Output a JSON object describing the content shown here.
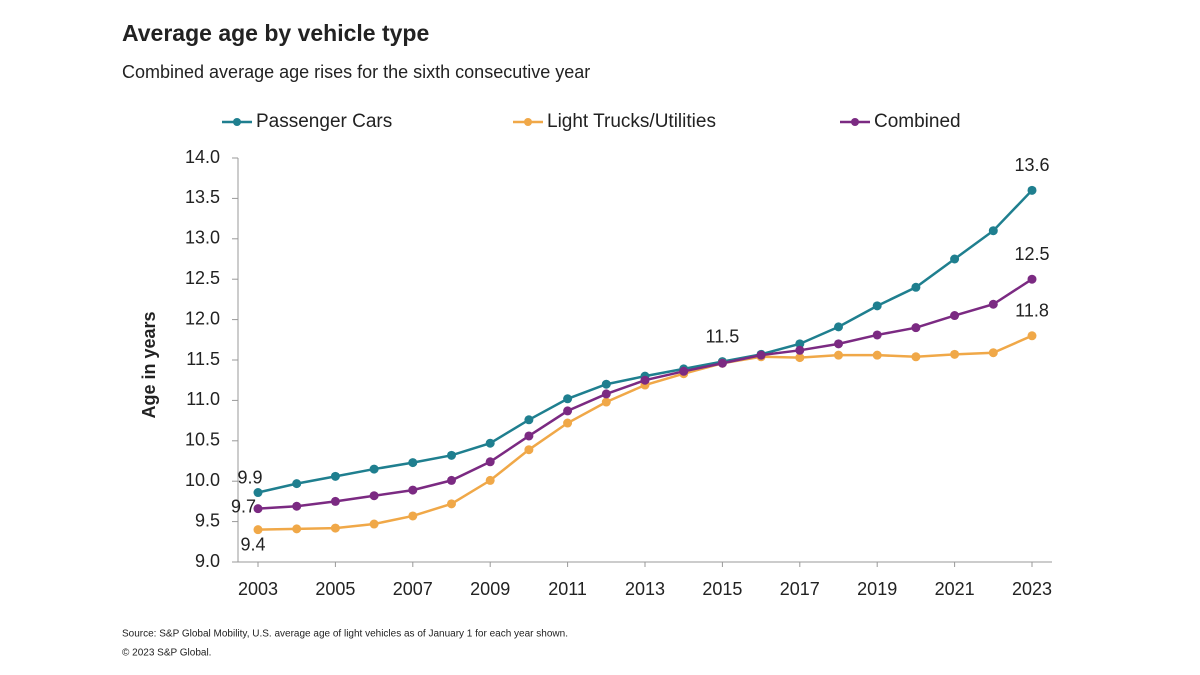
{
  "chart_data": {
    "type": "line",
    "title": "Average age by vehicle type",
    "subtitle": "Combined average age rises for the sixth consecutive year",
    "y_label": "Age in years",
    "x": [
      2003,
      2004,
      2005,
      2006,
      2007,
      2008,
      2009,
      2010,
      2011,
      2012,
      2013,
      2014,
      2015,
      2016,
      2017,
      2018,
      2019,
      2020,
      2021,
      2022,
      2023
    ],
    "xlim": [
      2003,
      2023
    ],
    "xticks": [
      2003,
      2005,
      2007,
      2009,
      2011,
      2013,
      2015,
      2017,
      2019,
      2021,
      2023
    ],
    "ylim": [
      9,
      14
    ],
    "yticks": [
      {
        "value": 9,
        "label": "9.0"
      },
      {
        "value": 9.5,
        "label": "9.5"
      },
      {
        "value": 10,
        "label": "10.0"
      },
      {
        "value": 10.5,
        "label": "10.5"
      },
      {
        "value": 11,
        "label": "11.0"
      },
      {
        "value": 11.5,
        "label": "11.5"
      },
      {
        "value": 12,
        "label": "12.0"
      },
      {
        "value": 12.5,
        "label": "12.5"
      },
      {
        "value": 13,
        "label": "13.0"
      },
      {
        "value": 13.5,
        "label": "13.5"
      },
      {
        "value": 14,
        "label": "14.0"
      }
    ],
    "grid": false,
    "legend": "top",
    "series": [
      {
        "name": "Passenger Cars",
        "color": "#1f7f8f",
        "values": [
          9.86,
          9.97,
          10.06,
          10.15,
          10.23,
          10.32,
          10.47,
          10.76,
          11.02,
          11.2,
          11.3,
          11.39,
          11.48,
          11.57,
          11.7,
          11.91,
          12.17,
          12.4,
          12.75,
          13.1,
          13.6
        ],
        "value_labels": [
          "9.9",
          null,
          null,
          null,
          null,
          null,
          null,
          null,
          null,
          null,
          null,
          null,
          "11.5",
          null,
          null,
          null,
          null,
          null,
          null,
          null,
          "13.6"
        ]
      },
      {
        "name": "Light Trucks/Utilities",
        "color": "#f0a848",
        "values": [
          9.4,
          9.41,
          9.42,
          9.47,
          9.57,
          9.72,
          10.01,
          10.39,
          10.72,
          10.98,
          11.19,
          11.33,
          11.46,
          11.54,
          11.53,
          11.56,
          11.56,
          11.54,
          11.57,
          11.59,
          11.8
        ],
        "value_labels": [
          "9.4",
          null,
          null,
          null,
          null,
          null,
          null,
          null,
          null,
          null,
          null,
          null,
          null,
          null,
          null,
          null,
          null,
          null,
          null,
          null,
          "11.8"
        ]
      },
      {
        "name": "Combined",
        "color": "#7b2a82",
        "values": [
          9.66,
          9.69,
          9.75,
          9.82,
          9.89,
          10.01,
          10.24,
          10.56,
          10.87,
          11.08,
          11.25,
          11.36,
          11.46,
          11.56,
          11.62,
          11.7,
          11.81,
          11.9,
          12.05,
          12.19,
          12.5
        ],
        "value_labels": [
          "9.7",
          null,
          null,
          null,
          null,
          null,
          null,
          null,
          null,
          null,
          null,
          null,
          null,
          null,
          null,
          null,
          null,
          null,
          null,
          null,
          "12.5"
        ]
      }
    ],
    "source": "Source: S&P Global Mobility, U.S. average age of light vehicles as of January 1 for each year shown.",
    "copyright": "© 2023 S&P Global."
  }
}
